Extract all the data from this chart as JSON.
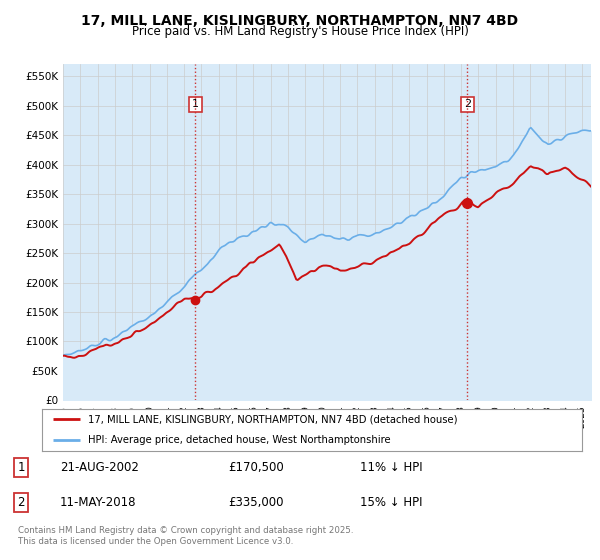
{
  "title": "17, MILL LANE, KISLINGBURY, NORTHAMPTON, NN7 4BD",
  "subtitle": "Price paid vs. HM Land Registry's House Price Index (HPI)",
  "title_fontsize": 10,
  "subtitle_fontsize": 8.5,
  "ylabel_ticks": [
    "£0",
    "£50K",
    "£100K",
    "£150K",
    "£200K",
    "£250K",
    "£300K",
    "£350K",
    "£400K",
    "£450K",
    "£500K",
    "£550K"
  ],
  "ytick_values": [
    0,
    50000,
    100000,
    150000,
    200000,
    250000,
    300000,
    350000,
    400000,
    450000,
    500000,
    550000
  ],
  "ylim": [
    0,
    570000
  ],
  "xlim_start": 1995.0,
  "xlim_end": 2025.5,
  "sale1_date_num": 2002.64,
  "sale1_price": 170500,
  "sale1_label": "1",
  "sale1_date_str": "21-AUG-2002",
  "sale1_price_str": "£170,500",
  "sale1_hpi_str": "11% ↓ HPI",
  "sale2_date_num": 2018.36,
  "sale2_price": 335000,
  "sale2_label": "2",
  "sale2_date_str": "11-MAY-2018",
  "sale2_price_str": "£335,000",
  "sale2_hpi_str": "15% ↓ HPI",
  "hpi_color": "#6aaee8",
  "hpi_fill_color": "#d8eaf8",
  "price_color": "#cc1111",
  "vline_color": "#cc3333",
  "legend_label_price": "17, MILL LANE, KISLINGBURY, NORTHAMPTON, NN7 4BD (detached house)",
  "legend_label_hpi": "HPI: Average price, detached house, West Northamptonshire",
  "footnote": "Contains HM Land Registry data © Crown copyright and database right 2025.\nThis data is licensed under the Open Government Licence v3.0.",
  "background_color": "#ffffff",
  "grid_color": "#cccccc"
}
